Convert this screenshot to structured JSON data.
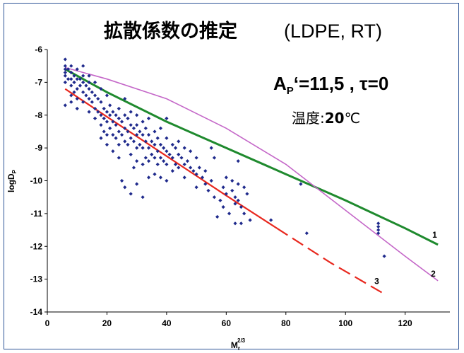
{
  "title": {
    "main": "拡散係数の推定",
    "sub": "(LDPE, RT)"
  },
  "annotations": {
    "params_A": "A",
    "params_P": "P",
    "params_rest": "‘=11,5 , τ=0",
    "temp_label": "温度:",
    "temp_value": "20",
    "temp_unit": "℃"
  },
  "chart_data": {
    "type": "scatter",
    "xlabel_base": "M",
    "xlabel_sub": "r",
    "xlabel_sup": "2/3",
    "ylabel_base": "logD",
    "ylabel_sub": "P",
    "xlim": [
      0,
      135
    ],
    "ylim": [
      -14,
      -6
    ],
    "xticks": [
      0,
      20,
      40,
      60,
      80,
      100,
      120
    ],
    "yticks": [
      -6,
      -7,
      -8,
      -9,
      -10,
      -11,
      -12,
      -13,
      -14
    ],
    "colors": {
      "points": "#1f2a8c",
      "curve_1": "#1f8a2e",
      "curve_2": "#c467c8",
      "curve_3": "#e8281e",
      "axis": "#000000"
    },
    "series": [
      {
        "name": "1",
        "style": "solid",
        "x": [
          6,
          20,
          40,
          60,
          80,
          100,
          120,
          131
        ],
        "y": [
          -6.6,
          -7.3,
          -8.2,
          -9.0,
          -9.8,
          -10.6,
          -11.45,
          -11.95
        ]
      },
      {
        "name": "2",
        "style": "solid",
        "x": [
          6,
          20,
          40,
          60,
          80,
          95,
          110,
          120,
          131
        ],
        "y": [
          -6.55,
          -6.9,
          -7.5,
          -8.4,
          -9.5,
          -10.55,
          -11.6,
          -12.3,
          -13.05
        ]
      },
      {
        "name": "3",
        "style": "solid-then-dashed",
        "dash_start_x": 77,
        "x": [
          6,
          20,
          40,
          60,
          77,
          95,
          113
        ],
        "y": [
          -7.2,
          -8.05,
          -9.25,
          -10.45,
          -11.45,
          -12.5,
          -13.45
        ]
      }
    ],
    "points": [
      [
        6,
        -6.3
      ],
      [
        6,
        -6.5
      ],
      [
        6,
        -6.6
      ],
      [
        6,
        -6.7
      ],
      [
        6,
        -6.8
      ],
      [
        6,
        -7.0
      ],
      [
        6,
        -7.7
      ],
      [
        7,
        -6.6
      ],
      [
        7,
        -6.9
      ],
      [
        8,
        -6.5
      ],
      [
        8,
        -6.7
      ],
      [
        8,
        -6.9
      ],
      [
        8,
        -7.1
      ],
      [
        8,
        -7.4
      ],
      [
        8,
        -7.6
      ],
      [
        9,
        -6.8
      ],
      [
        9,
        -7.0
      ],
      [
        9,
        -7.3
      ],
      [
        10,
        -6.6
      ],
      [
        10,
        -6.9
      ],
      [
        10,
        -7.2
      ],
      [
        10,
        -7.5
      ],
      [
        10,
        -7.8
      ],
      [
        11,
        -6.9
      ],
      [
        11,
        -7.1
      ],
      [
        12,
        -6.5
      ],
      [
        12,
        -6.8
      ],
      [
        12,
        -7.0
      ],
      [
        12,
        -7.3
      ],
      [
        12,
        -7.6
      ],
      [
        13,
        -7.1
      ],
      [
        13,
        -7.4
      ],
      [
        14,
        -6.8
      ],
      [
        14,
        -7.0
      ],
      [
        14,
        -7.2
      ],
      [
        14,
        -7.5
      ],
      [
        14,
        -7.9
      ],
      [
        15,
        -7.3
      ],
      [
        15,
        -7.6
      ],
      [
        16,
        -7.0
      ],
      [
        16,
        -7.4
      ],
      [
        16,
        -7.8
      ],
      [
        16,
        -8.1
      ],
      [
        17,
        -7.5
      ],
      [
        17,
        -7.9
      ],
      [
        18,
        -7.2
      ],
      [
        18,
        -7.6
      ],
      [
        18,
        -8.0
      ],
      [
        18,
        -8.3
      ],
      [
        18,
        -8.7
      ],
      [
        19,
        -7.8
      ],
      [
        19,
        -8.1
      ],
      [
        19,
        -8.5
      ],
      [
        20,
        -7.4
      ],
      [
        20,
        -7.9
      ],
      [
        20,
        -8.2
      ],
      [
        20,
        -8.6
      ],
      [
        20,
        -8.9
      ],
      [
        21,
        -7.7
      ],
      [
        21,
        -8.0
      ],
      [
        21,
        -8.4
      ],
      [
        22,
        -7.9
      ],
      [
        22,
        -8.2
      ],
      [
        22,
        -8.6
      ],
      [
        22,
        -9.1
      ],
      [
        23,
        -8.0
      ],
      [
        23,
        -8.3
      ],
      [
        23,
        -8.7
      ],
      [
        24,
        -7.8
      ],
      [
        24,
        -8.1
      ],
      [
        24,
        -8.5
      ],
      [
        24,
        -8.9
      ],
      [
        24,
        -9.3
      ],
      [
        25,
        -8.2
      ],
      [
        25,
        -8.6
      ],
      [
        25,
        -10.0
      ],
      [
        26,
        -7.5
      ],
      [
        26,
        -8.0
      ],
      [
        26,
        -8.4
      ],
      [
        26,
        -8.8
      ],
      [
        26,
        -10.2
      ],
      [
        27,
        -8.1
      ],
      [
        27,
        -8.5
      ],
      [
        27,
        -8.9
      ],
      [
        28,
        -7.9
      ],
      [
        28,
        -8.3
      ],
      [
        28,
        -8.7
      ],
      [
        28,
        -9.2
      ],
      [
        28,
        -10.4
      ],
      [
        29,
        -8.4
      ],
      [
        29,
        -8.8
      ],
      [
        29,
        -9.6
      ],
      [
        30,
        -8.0
      ],
      [
        30,
        -8.3
      ],
      [
        30,
        -8.6
      ],
      [
        30,
        -9.0
      ],
      [
        30,
        -9.4
      ],
      [
        30,
        -10.1
      ],
      [
        31,
        -8.5
      ],
      [
        31,
        -8.9
      ],
      [
        32,
        -8.2
      ],
      [
        32,
        -8.6
      ],
      [
        32,
        -9.0
      ],
      [
        32,
        -9.5
      ],
      [
        32,
        -10.5
      ],
      [
        33,
        -8.4
      ],
      [
        33,
        -8.8
      ],
      [
        33,
        -9.3
      ],
      [
        34,
        -8.1
      ],
      [
        34,
        -8.6
      ],
      [
        34,
        -9.0
      ],
      [
        34,
        -9.4
      ],
      [
        34,
        -9.9
      ],
      [
        35,
        -8.8
      ],
      [
        35,
        -9.2
      ],
      [
        36,
        -8.5
      ],
      [
        36,
        -8.9
      ],
      [
        36,
        -9.3
      ],
      [
        36,
        -9.8
      ],
      [
        37,
        -8.7
      ],
      [
        37,
        -9.1
      ],
      [
        37,
        -9.5
      ],
      [
        38,
        -8.4
      ],
      [
        38,
        -8.9
      ],
      [
        38,
        -9.3
      ],
      [
        38,
        -9.9
      ],
      [
        39,
        -9.0
      ],
      [
        39,
        -9.4
      ],
      [
        40,
        -8.7
      ],
      [
        40,
        -9.1
      ],
      [
        40,
        -9.5
      ],
      [
        40,
        -10.0
      ],
      [
        40,
        -8.1
      ],
      [
        41,
        -9.2
      ],
      [
        42,
        -8.9
      ],
      [
        42,
        -9.3
      ],
      [
        42,
        -9.7
      ],
      [
        43,
        -9.0
      ],
      [
        43,
        -9.5
      ],
      [
        44,
        -8.8
      ],
      [
        44,
        -9.2
      ],
      [
        44,
        -9.6
      ],
      [
        45,
        -9.3
      ],
      [
        46,
        -9.0
      ],
      [
        46,
        -9.5
      ],
      [
        46,
        -9.9
      ],
      [
        47,
        -9.4
      ],
      [
        48,
        -9.1
      ],
      [
        48,
        -9.6
      ],
      [
        49,
        -9.7
      ],
      [
        50,
        -9.3
      ],
      [
        50,
        -9.8
      ],
      [
        50,
        -10.2
      ],
      [
        51,
        -9.6
      ],
      [
        52,
        -9.9
      ],
      [
        53,
        -9.7
      ],
      [
        53,
        -10.1
      ],
      [
        54,
        -10.3
      ],
      [
        55,
        -9.0
      ],
      [
        55,
        -10.0
      ],
      [
        56,
        -9.3
      ],
      [
        56,
        -10.5
      ],
      [
        57,
        -11.1
      ],
      [
        58,
        -10.6
      ],
      [
        59,
        -10.2
      ],
      [
        59,
        -10.8
      ],
      [
        60,
        -9.9
      ],
      [
        60,
        -10.4
      ],
      [
        61,
        -11.0
      ],
      [
        62,
        -10.0
      ],
      [
        62,
        -10.3
      ],
      [
        63,
        -10.5
      ],
      [
        63,
        -10.7
      ],
      [
        63,
        -11.3
      ],
      [
        64,
        -9.4
      ],
      [
        64,
        -10.1
      ],
      [
        64,
        -10.6
      ],
      [
        65,
        -10.8
      ],
      [
        65,
        -11.3
      ],
      [
        66,
        -10.2
      ],
      [
        66,
        -11.0
      ],
      [
        67,
        -10.4
      ],
      [
        68,
        -11.2
      ],
      [
        75,
        -11.2
      ],
      [
        85,
        -10.1
      ],
      [
        87,
        -11.6
      ],
      [
        111,
        -11.3
      ],
      [
        111,
        -11.4
      ],
      [
        111,
        -11.5
      ],
      [
        111,
        -11.6
      ],
      [
        113,
        -12.3
      ]
    ]
  }
}
